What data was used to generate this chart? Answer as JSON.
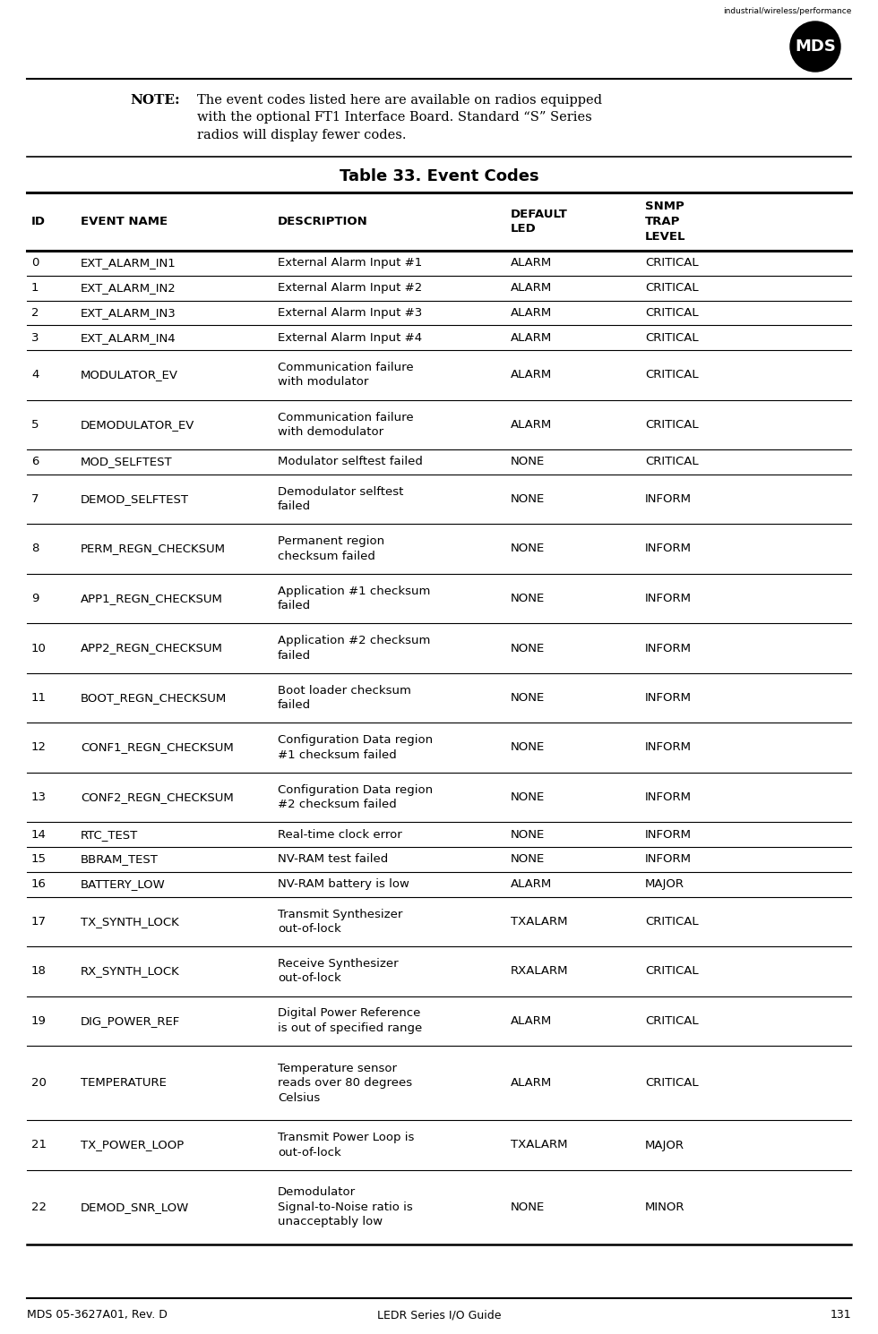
{
  "page_title_left": "MDS 05-3627A01, Rev. D",
  "page_title_center": "LEDR Series I/O Guide",
  "page_number": "131",
  "logo_text": "MDS",
  "logo_tagline": "industrial/wireless/performance",
  "note_label": "NOTE:",
  "note_text": "The event codes listed here are available on radios equipped\nwith the optional FT1 Interface Board. Standard “S” Series\nradios will display fewer codes.",
  "table_title": "Table 33. Event Codes",
  "col_headers": [
    "ID",
    "EVENT NAME",
    "DESCRIPTION",
    "DEFAULT\nLED",
    "SNMP\nTRAP\nLEVEL"
  ],
  "rows": [
    [
      "0",
      "EXT_ALARM_IN1",
      "External Alarm Input #1",
      "ALARM",
      "CRITICAL"
    ],
    [
      "1",
      "EXT_ALARM_IN2",
      "External Alarm Input #2",
      "ALARM",
      "CRITICAL"
    ],
    [
      "2",
      "EXT_ALARM_IN3",
      "External Alarm Input #3",
      "ALARM",
      "CRITICAL"
    ],
    [
      "3",
      "EXT_ALARM_IN4",
      "External Alarm Input #4",
      "ALARM",
      "CRITICAL"
    ],
    [
      "4",
      "MODULATOR_EV",
      "Communication failure\nwith modulator",
      "ALARM",
      "CRITICAL"
    ],
    [
      "5",
      "DEMODULATOR_EV",
      "Communication failure\nwith demodulator",
      "ALARM",
      "CRITICAL"
    ],
    [
      "6",
      "MOD_SELFTEST",
      "Modulator selftest failed",
      "NONE",
      "CRITICAL"
    ],
    [
      "7",
      "DEMOD_SELFTEST",
      "Demodulator selftest\nfailed",
      "NONE",
      "INFORM"
    ],
    [
      "8",
      "PERM_REGN_CHECKSUM",
      "Permanent region\nchecksum failed",
      "NONE",
      "INFORM"
    ],
    [
      "9",
      "APP1_REGN_CHECKSUM",
      "Application #1 checksum\nfailed",
      "NONE",
      "INFORM"
    ],
    [
      "10",
      "APP2_REGN_CHECKSUM",
      "Application #2 checksum\nfailed",
      "NONE",
      "INFORM"
    ],
    [
      "11",
      "BOOT_REGN_CHECKSUM",
      "Boot loader checksum\nfailed",
      "NONE",
      "INFORM"
    ],
    [
      "12",
      "CONF1_REGN_CHECKSUM",
      "Configuration Data region\n#1 checksum failed",
      "NONE",
      "INFORM"
    ],
    [
      "13",
      "CONF2_REGN_CHECKSUM",
      "Configuration Data region\n#2 checksum failed",
      "NONE",
      "INFORM"
    ],
    [
      "14",
      "RTC_TEST",
      "Real-time clock error",
      "NONE",
      "INFORM"
    ],
    [
      "15",
      "BBRAM_TEST",
      "NV-RAM test failed",
      "NONE",
      "INFORM"
    ],
    [
      "16",
      "BATTERY_LOW",
      "NV-RAM battery is low",
      "ALARM",
      "MAJOR"
    ],
    [
      "17",
      "TX_SYNTH_LOCK",
      "Transmit Synthesizer\nout-of-lock",
      "TXALARM",
      "CRITICAL"
    ],
    [
      "18",
      "RX_SYNTH_LOCK",
      "Receive Synthesizer\nout-of-lock",
      "RXALARM",
      "CRITICAL"
    ],
    [
      "19",
      "DIG_POWER_REF",
      "Digital Power Reference\nis out of specified range",
      "ALARM",
      "CRITICAL"
    ],
    [
      "20",
      "TEMPERATURE",
      "Temperature sensor\nreads over 80 degrees\nCelsius",
      "ALARM",
      "CRITICAL"
    ],
    [
      "21",
      "TX_POWER_LOOP",
      "Transmit Power Loop is\nout-of-lock",
      "TXALARM",
      "MAJOR"
    ],
    [
      "22",
      "DEMOD_SNR_LOW",
      "Demodulator\nSignal-to-Noise ratio is\nunacceptably low",
      "NONE",
      "MINOR"
    ]
  ],
  "row_heights": [
    1,
    1,
    1,
    1,
    2,
    2,
    1,
    2,
    2,
    2,
    2,
    2,
    2,
    2,
    1,
    1,
    1,
    2,
    2,
    2,
    3,
    2,
    3
  ],
  "bg_color": "#ffffff",
  "text_color": "#000000"
}
